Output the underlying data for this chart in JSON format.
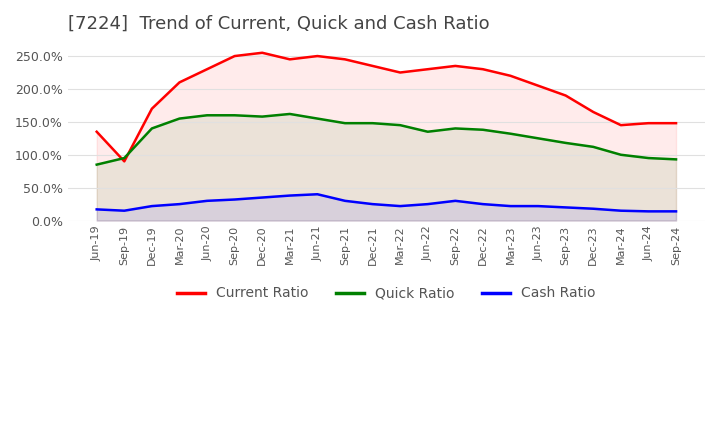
{
  "title": "[7224]  Trend of Current, Quick and Cash Ratio",
  "title_fontsize": 13,
  "x_labels": [
    "Jun-19",
    "Sep-19",
    "Dec-19",
    "Mar-20",
    "Jun-20",
    "Sep-20",
    "Dec-20",
    "Mar-21",
    "Jun-21",
    "Sep-21",
    "Dec-21",
    "Mar-22",
    "Jun-22",
    "Sep-22",
    "Dec-22",
    "Mar-23",
    "Jun-23",
    "Sep-23",
    "Dec-23",
    "Mar-24",
    "Jun-24",
    "Sep-24"
  ],
  "current_ratio": [
    135,
    90,
    170,
    210,
    230,
    250,
    255,
    245,
    250,
    245,
    235,
    225,
    230,
    235,
    230,
    220,
    205,
    190,
    165,
    145,
    148,
    148
  ],
  "quick_ratio": [
    85,
    95,
    140,
    155,
    160,
    160,
    158,
    162,
    155,
    148,
    148,
    145,
    135,
    140,
    138,
    132,
    125,
    118,
    112,
    100,
    95,
    93
  ],
  "cash_ratio": [
    17,
    15,
    22,
    25,
    30,
    32,
    35,
    38,
    40,
    30,
    25,
    22,
    25,
    30,
    25,
    22,
    22,
    20,
    18,
    15,
    14,
    14
  ],
  "current_color": "#FF0000",
  "quick_color": "#008000",
  "cash_color": "#0000FF",
  "ylim": [
    0,
    270
  ],
  "yticks": [
    0,
    50,
    100,
    150,
    200,
    250
  ],
  "ytick_labels": [
    "0.0%",
    "50.0%",
    "100.0%",
    "150.0%",
    "200.0%",
    "250.0%"
  ],
  "legend_labels": [
    "Current Ratio",
    "Quick Ratio",
    "Cash Ratio"
  ],
  "background_color": "#ffffff",
  "plot_bg_color": "#ffffff",
  "grid_color": "#e0e0e0",
  "line_width": 1.8
}
